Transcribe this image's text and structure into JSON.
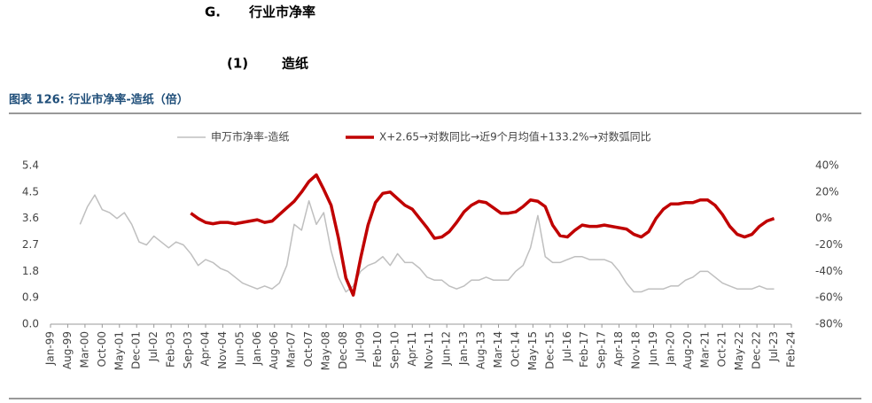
{
  "heading": {
    "section": "G.",
    "title": "行业市净率"
  },
  "subheading": {
    "number": "(1)",
    "title": "造纸"
  },
  "caption": "图表 126: 行业市净率-造纸（倍）",
  "chart_data": {
    "type": "line",
    "x": [
      2000,
      2000.25,
      2000.5,
      2000.75,
      2001,
      2001.25,
      2001.5,
      2001.75,
      2002,
      2002.25,
      2002.5,
      2002.75,
      2003,
      2003.25,
      2003.5,
      2003.75,
      2004,
      2004.25,
      2004.5,
      2004.75,
      2005,
      2005.25,
      2005.5,
      2005.75,
      2006,
      2006.25,
      2006.5,
      2006.75,
      2007,
      2007.25,
      2007.5,
      2007.75,
      2008,
      2008.25,
      2008.5,
      2008.75,
      2009,
      2009.25,
      2009.5,
      2009.75,
      2010,
      2010.25,
      2010.5,
      2010.75,
      2011,
      2011.25,
      2011.5,
      2011.75,
      2012,
      2012.25,
      2012.5,
      2012.75,
      2013,
      2013.25,
      2013.5,
      2013.75,
      2014,
      2014.25,
      2014.5,
      2014.75,
      2015,
      2015.25,
      2015.5,
      2015.75,
      2016,
      2016.25,
      2016.5,
      2016.75,
      2017,
      2017.25,
      2017.5,
      2017.75,
      2018,
      2018.25,
      2018.5,
      2018.75,
      2019,
      2019.25,
      2019.5,
      2019.75,
      2020,
      2020.25,
      2020.5,
      2020.75,
      2021,
      2021.25,
      2021.5,
      2021.75,
      2022,
      2022.25,
      2022.5,
      2022.75,
      2023,
      2023.25,
      2023.5
    ],
    "series": [
      {
        "name": "申万市净率-造纸",
        "color": "#bfbfbf",
        "axis": "y",
        "values": [
          3.4,
          4.0,
          4.4,
          3.9,
          3.8,
          3.6,
          3.8,
          3.4,
          2.8,
          2.7,
          3.0,
          2.8,
          2.6,
          2.8,
          2.7,
          2.4,
          2.0,
          2.2,
          2.1,
          1.9,
          1.8,
          1.6,
          1.4,
          1.3,
          1.2,
          1.3,
          1.2,
          1.4,
          2.0,
          3.4,
          3.2,
          4.2,
          3.4,
          3.8,
          2.5,
          1.6,
          1.1,
          1.3,
          1.8,
          2.0,
          2.1,
          2.3,
          2.0,
          2.4,
          2.1,
          2.1,
          1.9,
          1.6,
          1.5,
          1.5,
          1.3,
          1.2,
          1.3,
          1.5,
          1.5,
          1.6,
          1.5,
          1.5,
          1.5,
          1.8,
          2.0,
          2.6,
          3.7,
          2.3,
          2.1,
          2.1,
          2.2,
          2.3,
          2.3,
          2.2,
          2.2,
          2.2,
          2.1,
          1.8,
          1.4,
          1.1,
          1.1,
          1.2,
          1.2,
          1.2,
          1.3,
          1.3,
          1.5,
          1.6,
          1.8,
          1.8,
          1.6,
          1.4,
          1.3,
          1.2,
          1.2,
          1.2,
          1.3,
          1.2,
          1.2
        ]
      },
      {
        "name": "X+2.65→对数同比→近9个月均值+133.2%→对数弧同比",
        "color": "#c00000",
        "axis": "y2",
        "values": [
          null,
          null,
          null,
          null,
          null,
          null,
          null,
          null,
          null,
          null,
          null,
          null,
          null,
          null,
          null,
          4,
          0,
          -3,
          -4,
          -3,
          -3,
          -4,
          -3,
          -2,
          -1,
          -3,
          -2,
          3,
          8,
          13,
          20,
          28,
          33,
          22,
          10,
          -15,
          -45,
          -58,
          -30,
          -5,
          12,
          19,
          20,
          15,
          10,
          7,
          0,
          -7,
          -15,
          -14,
          -10,
          -3,
          5,
          10,
          13,
          12,
          8,
          4,
          4,
          5,
          9,
          14,
          13,
          9,
          -5,
          -13,
          -14,
          -9,
          -5,
          -6,
          -6,
          -5,
          -6,
          -7,
          -8,
          -12,
          -14,
          -10,
          0,
          7,
          11,
          11,
          12,
          12,
          14,
          14,
          10,
          3,
          -6,
          -12,
          -14,
          -12,
          -6,
          -2,
          0
        ]
      }
    ],
    "xlim": [
      1999,
      2024.083
    ],
    "xticks": [
      {
        "value": 1999,
        "label": "Jan-99"
      },
      {
        "value": 1999.583,
        "label": "Aug-99"
      },
      {
        "value": 2000.167,
        "label": "Mar-00"
      },
      {
        "value": 2000.75,
        "label": "Oct-00"
      },
      {
        "value": 2001.333,
        "label": "May-01"
      },
      {
        "value": 2001.917,
        "label": "Dec-01"
      },
      {
        "value": 2002.5,
        "label": "Jul-02"
      },
      {
        "value": 2003.083,
        "label": "Feb-03"
      },
      {
        "value": 2003.667,
        "label": "Sep-03"
      },
      {
        "value": 2004.25,
        "label": "Apr-04"
      },
      {
        "value": 2004.833,
        "label": "Nov-04"
      },
      {
        "value": 2005.417,
        "label": "Jun-05"
      },
      {
        "value": 2006,
        "label": "Jan-06"
      },
      {
        "value": 2006.583,
        "label": "Aug-06"
      },
      {
        "value": 2007.167,
        "label": "Mar-07"
      },
      {
        "value": 2007.75,
        "label": "Oct-07"
      },
      {
        "value": 2008.333,
        "label": "May-08"
      },
      {
        "value": 2008.917,
        "label": "Dec-08"
      },
      {
        "value": 2009.5,
        "label": "Jul-09"
      },
      {
        "value": 2010.083,
        "label": "Feb-10"
      },
      {
        "value": 2010.667,
        "label": "Sep-10"
      },
      {
        "value": 2011.25,
        "label": "Apr-11"
      },
      {
        "value": 2011.833,
        "label": "Nov-11"
      },
      {
        "value": 2012.417,
        "label": "Jun-12"
      },
      {
        "value": 2013,
        "label": "Jan-13"
      },
      {
        "value": 2013.583,
        "label": "Aug-13"
      },
      {
        "value": 2014.167,
        "label": "Mar-14"
      },
      {
        "value": 2014.75,
        "label": "Oct-14"
      },
      {
        "value": 2015.333,
        "label": "May-15"
      },
      {
        "value": 2015.917,
        "label": "Dec-15"
      },
      {
        "value": 2016.5,
        "label": "Jul-16"
      },
      {
        "value": 2017.083,
        "label": "Feb-17"
      },
      {
        "value": 2017.667,
        "label": "Sep-17"
      },
      {
        "value": 2018.25,
        "label": "Apr-18"
      },
      {
        "value": 2018.833,
        "label": "Nov-18"
      },
      {
        "value": 2019.417,
        "label": "Jun-19"
      },
      {
        "value": 2020,
        "label": "Jan-20"
      },
      {
        "value": 2020.583,
        "label": "Aug-20"
      },
      {
        "value": 2021.167,
        "label": "Mar-21"
      },
      {
        "value": 2021.75,
        "label": "Oct-21"
      },
      {
        "value": 2022.333,
        "label": "May-22"
      },
      {
        "value": 2022.917,
        "label": "Dec-22"
      },
      {
        "value": 2023.5,
        "label": "Jul-23"
      },
      {
        "value": 2024.083,
        "label": "Feb-24"
      }
    ],
    "ylim": [
      0,
      5.4
    ],
    "yticks": [
      {
        "value": 0,
        "label": "0.0"
      },
      0.9,
      1.8,
      2.7,
      3.6,
      4.5,
      5.4
    ],
    "y2lim": [
      -80,
      40
    ],
    "y2ticks": [
      {
        "value": -80,
        "label": "-80%"
      },
      {
        "value": -60,
        "label": "-60%"
      },
      {
        "value": -40,
        "label": "-40%"
      },
      {
        "value": -20,
        "label": "-20%"
      },
      {
        "value": 0,
        "label": "0%"
      },
      {
        "value": 20,
        "label": "20%"
      },
      {
        "value": 40,
        "label": "40%"
      }
    ],
    "grid": false
  }
}
